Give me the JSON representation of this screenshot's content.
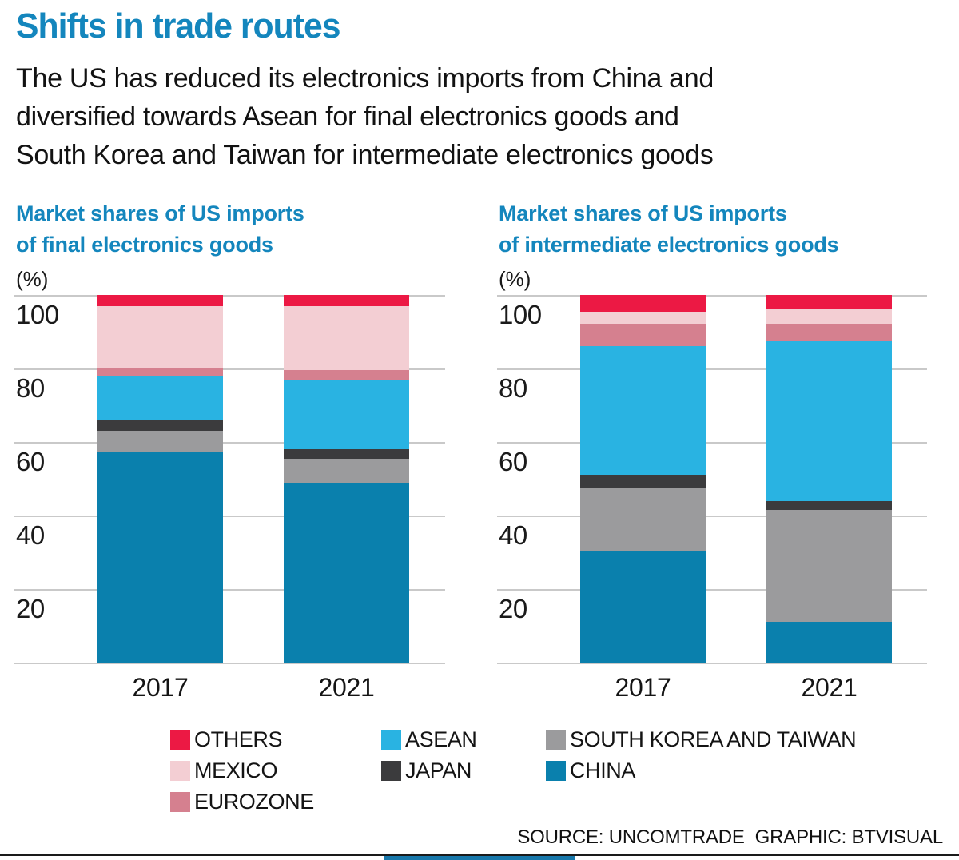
{
  "title": "Shifts in trade routes",
  "subtitle": "The US has reduced its electronics imports from China and\ndiversified towards Asean for final electronics goods and\nSouth Korea and Taiwan for intermediate electronics goods",
  "footer": {
    "credit": "SOURCE: UNCOMTRADE  GRAPHIC: BTVISUAL"
  },
  "colors": {
    "title_blue": "#1486bd",
    "others": "#ec1944",
    "mexico": "#f3ced3",
    "eurozone": "#d5808f",
    "asean": "#29b3e2",
    "japan": "#3b3b3d",
    "south_korea_and_taiwan": "#9b9b9d",
    "china": "#0a80ad",
    "gridline": "#c9c9c9",
    "bottom_accent": "#1878ab"
  },
  "legend": {
    "items": [
      {
        "label": "OTHERS",
        "color": "#ec1944"
      },
      {
        "label": "ASEAN",
        "color": "#29b3e2"
      },
      {
        "label": "SOUTH KOREA AND TAIWAN",
        "color": "#9b9b9d"
      },
      {
        "label": "MEXICO",
        "color": "#f3ced3"
      },
      {
        "label": "JAPAN",
        "color": "#3b3b3d"
      },
      {
        "label": "CHINA",
        "color": "#0a80ad"
      },
      {
        "label": "EUROZONE",
        "color": "#d5808f"
      }
    ]
  },
  "chart_data": [
    {
      "type": "bar",
      "stacked": true,
      "title": "Market shares of US imports\nof final electronics goods",
      "unit_label": "(%)",
      "categories": [
        "2017",
        "2021"
      ],
      "xlabel": "",
      "ylabel": "%",
      "ylim": [
        0,
        100
      ],
      "yticks": [
        100,
        80,
        60,
        40,
        20
      ],
      "grid": true,
      "legend_position": "bottom",
      "series": [
        {
          "name": "CHINA",
          "color": "#0a80ad",
          "values": [
            57.5,
            49
          ]
        },
        {
          "name": "SOUTH KOREA AND TAIWAN",
          "color": "#9b9b9d",
          "values": [
            5.5,
            6.5
          ]
        },
        {
          "name": "JAPAN",
          "color": "#3b3b3d",
          "values": [
            3,
            2.5
          ]
        },
        {
          "name": "ASEAN",
          "color": "#29b3e2",
          "values": [
            12,
            19
          ]
        },
        {
          "name": "EUROZONE",
          "color": "#d5808f",
          "values": [
            2,
            2.5
          ]
        },
        {
          "name": "MEXICO",
          "color": "#f3ced3",
          "values": [
            17,
            17.5
          ]
        },
        {
          "name": "OTHERS",
          "color": "#ec1944",
          "values": [
            3,
            3
          ]
        }
      ]
    },
    {
      "type": "bar",
      "stacked": true,
      "title": "Market shares of US imports\nof intermediate electronics goods",
      "unit_label": "(%)",
      "categories": [
        "2017",
        "2021"
      ],
      "xlabel": "",
      "ylabel": "%",
      "ylim": [
        0,
        100
      ],
      "yticks": [
        100,
        80,
        60,
        40,
        20
      ],
      "grid": true,
      "legend_position": "bottom",
      "series": [
        {
          "name": "CHINA",
          "color": "#0a80ad",
          "values": [
            30.5,
            11
          ]
        },
        {
          "name": "SOUTH KOREA AND TAIWAN",
          "color": "#9b9b9d",
          "values": [
            17,
            30.5
          ]
        },
        {
          "name": "JAPAN",
          "color": "#3b3b3d",
          "values": [
            3.5,
            2.5
          ]
        },
        {
          "name": "ASEAN",
          "color": "#29b3e2",
          "values": [
            35,
            43.5
          ]
        },
        {
          "name": "EUROZONE",
          "color": "#d5808f",
          "values": [
            6,
            4.5
          ]
        },
        {
          "name": "MEXICO",
          "color": "#f3ced3",
          "values": [
            3.5,
            4
          ]
        },
        {
          "name": "OTHERS",
          "color": "#ec1944",
          "values": [
            4.5,
            4
          ]
        }
      ]
    }
  ]
}
